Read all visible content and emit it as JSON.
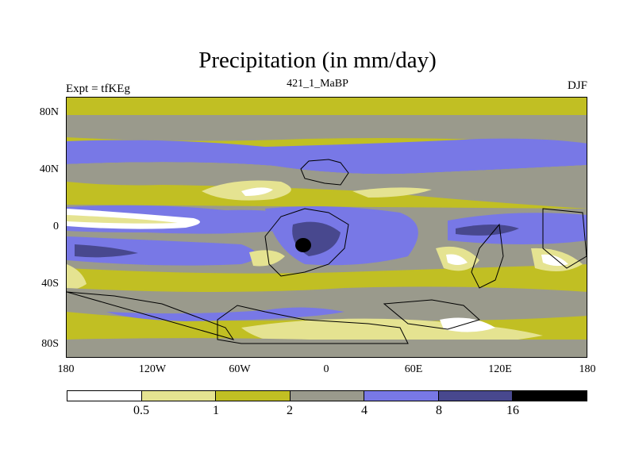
{
  "title": "Precipitation (in mm/day)",
  "experiment_label": "Expt = tfKEg",
  "run_label": "421_1_MaBP",
  "season_label": "DJF",
  "y_axis_labels": [
    "80N",
    "40N",
    "0",
    "40S",
    "80S"
  ],
  "x_axis_labels": [
    "180",
    "120W",
    "60W",
    "0",
    "60E",
    "120E",
    "180"
  ],
  "legend": {
    "colors": [
      "#ffffff",
      "#e5e391",
      "#c1bf23",
      "#9a9a8c",
      "#7878e6",
      "#48488e",
      "#000000"
    ],
    "labels": [
      "0.5",
      "1",
      "2",
      "4",
      "8",
      "16"
    ]
  }
}
